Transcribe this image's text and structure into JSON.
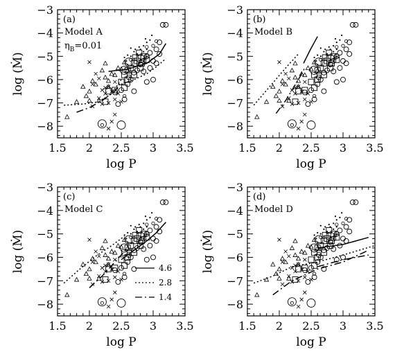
{
  "chart_data": [
    {
      "type": "scatter",
      "panel_label": "(a)",
      "model_label": "Model A",
      "eta_label": {
        "symbol": "η",
        "sub": "B",
        "eq": "=0.01"
      },
      "xlabel": "log P",
      "ylabel": "log (Ṁ)",
      "xlim": [
        1.5,
        3.5
      ],
      "ylim": [
        -8.5,
        -3
      ],
      "xticks": [
        "1.5",
        "2",
        "2.5",
        "3",
        "3.5"
      ],
      "yticks": [
        "−3",
        "−4",
        "−5",
        "−6",
        "−7",
        "−8"
      ],
      "series": [
        {
          "style": "solid",
          "x": [
            2.3,
            2.6,
            2.9,
            3.1,
            3.2
          ],
          "y": [
            -5.65,
            -5.55,
            -5.3,
            -4.9,
            -4.45
          ]
        },
        {
          "style": "dotted",
          "x": [
            2.5,
            2.7,
            2.9,
            3.05,
            3.2
          ],
          "y": [
            -6.2,
            -6.0,
            -5.75,
            -5.45,
            -5.1
          ]
        },
        {
          "style": "dotted",
          "x": [
            1.6,
            1.9,
            2.15,
            2.35,
            2.5
          ],
          "y": [
            -7.1,
            -7.05,
            -6.95,
            -6.6,
            -6.0
          ]
        },
        {
          "style": "dash-dot",
          "x": [
            1.8,
            2.0,
            2.2,
            2.4,
            2.5
          ],
          "y": [
            -7.4,
            -7.2,
            -6.9,
            -6.5,
            -6.1
          ]
        }
      ]
    },
    {
      "type": "scatter",
      "panel_label": "(b)",
      "model_label": "Model B",
      "xlabel": "log P",
      "ylabel": "log (Ṁ)",
      "xlim": [
        1.5,
        3.5
      ],
      "ylim": [
        -8.5,
        -3
      ],
      "xticks": [
        "1.5",
        "2",
        "2.5",
        "3",
        "3.5"
      ],
      "yticks": [
        "−3",
        "−4",
        "−5",
        "−6",
        "−7",
        "−8"
      ],
      "series": [
        {
          "style": "solid",
          "x": [
            2.38,
            2.48,
            2.6
          ],
          "y": [
            -5.3,
            -4.75,
            -4.15
          ]
        },
        {
          "style": "dotted",
          "x": [
            1.6,
            1.85,
            2.1,
            2.3
          ],
          "y": [
            -7.1,
            -6.3,
            -5.5,
            -4.9
          ]
        },
        {
          "style": "dash-dot",
          "x": [
            1.95,
            2.1,
            2.3,
            2.4
          ],
          "y": [
            -7.45,
            -6.9,
            -6.0,
            -5.5
          ]
        }
      ]
    },
    {
      "type": "scatter",
      "panel_label": "(c)",
      "model_label": "Model C",
      "xlabel": "log P",
      "ylabel": "log (Ṁ)",
      "xlim": [
        1.5,
        3.5
      ],
      "ylim": [
        -8.5,
        -3
      ],
      "xticks": [
        "1.5",
        "2",
        "2.5",
        "3",
        "3.5"
      ],
      "yticks": [
        "−3",
        "−4",
        "−5",
        "−6",
        "−7",
        "−8"
      ],
      "legend": [
        {
          "style": "solid",
          "label": "4.6"
        },
        {
          "style": "dotted",
          "label": "2.8"
        },
        {
          "style": "dash-dot",
          "label": "1.4"
        }
      ],
      "series": [
        {
          "style": "solid",
          "x": [
            2.5,
            2.7,
            2.9,
            3.05,
            3.2
          ],
          "y": [
            -6.1,
            -5.7,
            -5.3,
            -4.95,
            -4.5
          ]
        },
        {
          "style": "dotted",
          "x": [
            1.6,
            1.85,
            2.1,
            2.35,
            2.55
          ],
          "y": [
            -7.1,
            -6.5,
            -5.95,
            -5.5,
            -5.1
          ]
        },
        {
          "style": "dash-dot",
          "x": [
            2.0,
            2.2,
            2.4,
            2.6
          ],
          "y": [
            -7.3,
            -6.8,
            -6.2,
            -5.6
          ]
        }
      ]
    },
    {
      "type": "scatter",
      "panel_label": "(d)",
      "model_label": "Model D",
      "xlabel": "log P",
      "ylabel": "log (Ṁ)",
      "xlim": [
        1.5,
        3.5
      ],
      "ylim": [
        -8.5,
        -3
      ],
      "xticks": [
        "1.5",
        "2",
        "2.5",
        "3",
        "3.5"
      ],
      "yticks": [
        "−3",
        "−4",
        "−5",
        "−6",
        "−7",
        "−8"
      ],
      "series": [
        {
          "style": "solid",
          "x": [
            2.6,
            3.0,
            3.4
          ],
          "y": [
            -5.6,
            -5.45,
            -5.15
          ]
        },
        {
          "style": "dotted",
          "x": [
            1.6,
            1.9,
            2.2,
            2.6,
            3.0,
            3.5
          ],
          "y": [
            -7.1,
            -6.8,
            -6.4,
            -6.2,
            -5.9,
            -5.5
          ]
        },
        {
          "style": "dash-dot",
          "x": [
            1.9,
            2.2,
            2.6,
            3.0,
            3.4
          ],
          "y": [
            -7.6,
            -7.0,
            -6.5,
            -6.2,
            -5.7
          ]
        },
        {
          "style": "dash-dot",
          "x": [
            2.6,
            3.0,
            3.4
          ],
          "y": [
            -6.4,
            -6.1,
            -5.9
          ]
        }
      ]
    }
  ],
  "observations": {
    "triangles": [
      [
        1.8,
        -6.95
      ],
      [
        1.9,
        -6.3
      ],
      [
        1.95,
        -6.7
      ],
      [
        2.0,
        -6.5
      ],
      [
        2.05,
        -6.05
      ],
      [
        2.1,
        -6.2
      ],
      [
        2.2,
        -5.6
      ],
      [
        2.25,
        -5.9
      ],
      [
        2.3,
        -6.05
      ],
      [
        2.35,
        -5.75
      ],
      [
        2.4,
        -5.8
      ],
      [
        2.45,
        -5.5
      ],
      [
        2.15,
        -6.9
      ],
      [
        2.0,
        -6.9
      ],
      [
        1.65,
        -7.6
      ],
      [
        2.3,
        -6.3
      ],
      [
        2.5,
        -5.55
      ],
      [
        2.55,
        -5.25
      ],
      [
        2.6,
        -5.6
      ],
      [
        2.25,
        -5.3
      ]
    ],
    "crosses": [
      [
        2.05,
        -7.15
      ],
      [
        2.15,
        -6.8
      ],
      [
        2.2,
        -7.05
      ],
      [
        2.25,
        -6.6
      ],
      [
        2.3,
        -7.0
      ],
      [
        2.35,
        -6.5
      ],
      [
        2.4,
        -6.85
      ],
      [
        2.3,
        -6.3
      ],
      [
        2.2,
        -6.45
      ],
      [
        2.1,
        -5.75
      ],
      [
        2.0,
        -5.25
      ],
      [
        2.3,
        -8.1
      ],
      [
        2.35,
        -7.8
      ],
      [
        2.45,
        -6.6
      ],
      [
        2.5,
        -6.95
      ],
      [
        2.4,
        -7.5
      ],
      [
        2.05,
        -6.2
      ],
      [
        2.15,
        -5.95
      ],
      [
        2.25,
        -6.35
      ],
      [
        2.4,
        -6.1
      ]
    ],
    "squares": [
      [
        2.55,
        -5.8
      ],
      [
        2.6,
        -5.6
      ],
      [
        2.65,
        -5.5
      ],
      [
        2.7,
        -5.3
      ],
      [
        2.72,
        -5.05
      ],
      [
        2.75,
        -5.2
      ],
      [
        2.8,
        -5.5
      ],
      [
        2.85,
        -5.0
      ],
      [
        2.6,
        -6.0
      ],
      [
        2.5,
        -6.1
      ],
      [
        2.3,
        -6.5
      ],
      [
        2.25,
        -6.95
      ],
      [
        2.4,
        -6.45
      ],
      [
        2.55,
        -6.35
      ],
      [
        2.7,
        -5.8
      ],
      [
        2.78,
        -4.85
      ],
      [
        2.82,
        -5.3
      ],
      [
        2.9,
        -5.15
      ]
    ],
    "circles": [
      [
        2.4,
        -6.55
      ],
      [
        2.5,
        -6.45
      ],
      [
        2.6,
        -6.2
      ],
      [
        2.65,
        -6.0
      ],
      [
        2.7,
        -5.7
      ],
      [
        2.75,
        -5.6
      ],
      [
        2.8,
        -5.35
      ],
      [
        2.85,
        -5.2
      ],
      [
        2.9,
        -5.0
      ],
      [
        2.95,
        -4.85
      ],
      [
        3.0,
        -5.2
      ],
      [
        3.05,
        -4.7
      ],
      [
        3.1,
        -4.9
      ],
      [
        3.1,
        -4.4
      ],
      [
        3.15,
        -3.65
      ],
      [
        3.2,
        -3.65
      ],
      [
        2.9,
        -6.1
      ],
      [
        3.0,
        -6.0
      ],
      [
        2.7,
        -6.5
      ],
      [
        2.55,
        -6.85
      ],
      [
        2.45,
        -7.05
      ],
      [
        2.85,
        -5.65
      ],
      [
        2.95,
        -5.5
      ],
      [
        3.05,
        -5.3
      ],
      [
        2.62,
        -5.9
      ]
    ],
    "big_circles": [
      [
        2.5,
        -7.95
      ],
      [
        2.55,
        -5.6
      ],
      [
        2.8,
        -5.1
      ],
      [
        2.62,
        -5.25
      ],
      [
        2.2,
        -7.9
      ]
    ],
    "small_circles": [
      [
        2.2,
        -7.95
      ],
      [
        2.55,
        -6.7
      ],
      [
        2.9,
        -4.6
      ],
      [
        2.9,
        -4.95
      ],
      [
        3.0,
        -4.55
      ],
      [
        3.05,
        -4.35
      ],
      [
        2.65,
        -5.15
      ]
    ],
    "dots": [
      [
        2.6,
        -4.95
      ],
      [
        2.65,
        -5.0
      ],
      [
        2.7,
        -4.8
      ],
      [
        2.75,
        -4.9
      ],
      [
        2.8,
        -4.7
      ],
      [
        2.85,
        -4.55
      ],
      [
        2.9,
        -4.4
      ],
      [
        2.95,
        -4.3
      ],
      [
        2.98,
        -4.1
      ],
      [
        2.55,
        -5.05
      ],
      [
        2.6,
        -5.35
      ],
      [
        2.7,
        -5.1
      ],
      [
        2.8,
        -5.15
      ],
      [
        2.85,
        -4.8
      ],
      [
        2.9,
        -4.7
      ],
      [
        2.72,
        -4.7
      ],
      [
        2.65,
        -4.65
      ],
      [
        2.78,
        -4.6
      ],
      [
        2.88,
        -4.25
      ],
      [
        2.58,
        -5.2
      ]
    ]
  }
}
